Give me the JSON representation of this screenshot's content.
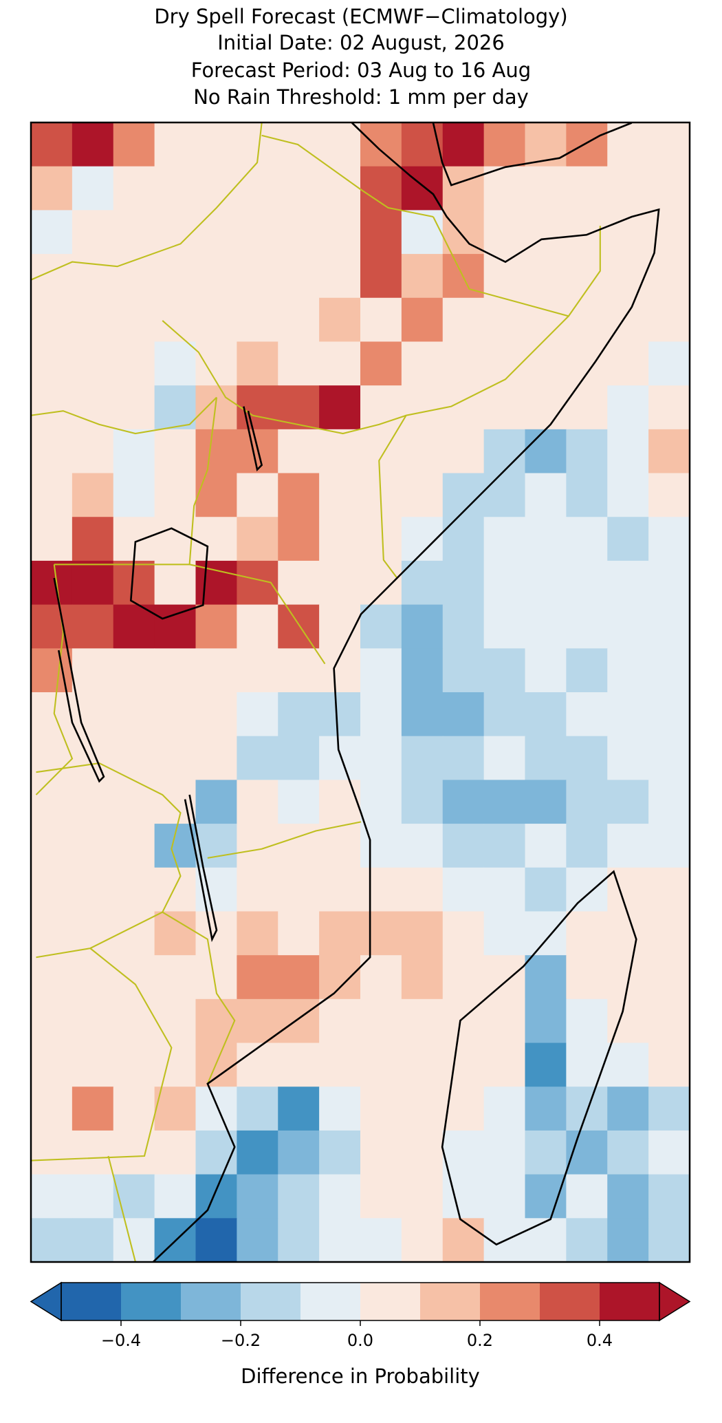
{
  "chart_data": {
    "type": "heatmap",
    "title": "Dry Spell Forecast (ECMWF−Climatology)",
    "subtitles": [
      "Initial Date: 02 August, 2026",
      "Forecast Period: 03 Aug to 16 Aug",
      "No Rain Threshold: 1 mm per day"
    ],
    "colorbar_label": "Difference in Probability",
    "clim": [
      -0.5,
      0.5
    ],
    "levels": [
      -0.5,
      -0.4,
      -0.3,
      -0.2,
      -0.1,
      0,
      0.1,
      0.2,
      0.3,
      0.4,
      0.5
    ],
    "colors": [
      "#2166ac",
      "#4393c3",
      "#7eb6d9",
      "#b8d7e9",
      "#e5eef4",
      "#fae8de",
      "#f6c1a7",
      "#e8896c",
      "#cf5246",
      "#ad1529"
    ],
    "extend": "both",
    "cticks": [
      {
        "value": -0.4,
        "label": "−0.4"
      },
      {
        "value": -0.2,
        "label": "−0.2"
      },
      {
        "value": 0,
        "label": "0.0"
      },
      0.2,
      0.4
    ],
    "grid_values": [
      [
        0.35,
        0.45,
        0.25,
        0.05,
        0.05,
        0.05,
        0.05,
        0.05,
        0.25,
        0.35,
        0.45,
        0.25,
        0.15,
        0.25,
        0.05,
        0.05
      ],
      [
        0.15,
        -0.05,
        0.05,
        0.05,
        0.05,
        0.05,
        0.05,
        0.05,
        0.35,
        0.45,
        0.15,
        0.05,
        0.05,
        0.05,
        0.05,
        0.05
      ],
      [
        -0.05,
        0.05,
        0.05,
        0.05,
        0.05,
        0.05,
        0.05,
        0.05,
        0.35,
        -0.05,
        0.15,
        0.05,
        0.05,
        0.05,
        0.05,
        0.05
      ],
      [
        0.05,
        0.05,
        0.05,
        0.05,
        0.05,
        0.05,
        0.05,
        0.05,
        0.35,
        0.15,
        0.25,
        0.05,
        0.05,
        0.05,
        0.05,
        0.05
      ],
      [
        0.05,
        0.05,
        0.05,
        0.05,
        0.05,
        0.05,
        0.05,
        0.15,
        0.05,
        0.25,
        0.05,
        0.05,
        0.05,
        0.05,
        0.05,
        0.05
      ],
      [
        0.05,
        0.05,
        0.05,
        -0.05,
        0.05,
        0.15,
        0.05,
        0.05,
        0.25,
        0.05,
        0.05,
        0.05,
        0.05,
        0.05,
        0.05,
        -0.05
      ],
      [
        0.05,
        0.05,
        0.05,
        -0.15,
        0.15,
        0.35,
        0.35,
        0.45,
        0.05,
        0.05,
        0.05,
        0.05,
        0.05,
        0.05,
        -0.05,
        0.05
      ],
      [
        0.05,
        0.05,
        -0.05,
        0.05,
        0.25,
        0.25,
        0.05,
        0.05,
        0.05,
        0.05,
        0.05,
        -0.15,
        -0.25,
        -0.15,
        -0.05,
        0.15
      ],
      [
        0.05,
        0.15,
        -0.05,
        0.05,
        0.25,
        0.05,
        0.25,
        0.05,
        0.05,
        0.05,
        -0.15,
        -0.15,
        -0.05,
        -0.15,
        -0.05,
        0.05
      ],
      [
        0.05,
        0.35,
        0.05,
        0.05,
        0.05,
        0.15,
        0.25,
        0.05,
        0.05,
        -0.05,
        -0.15,
        -0.05,
        -0.05,
        -0.05,
        -0.15,
        -0.05
      ],
      [
        0.45,
        0.45,
        0.35,
        0.05,
        0.45,
        0.35,
        0.05,
        0.05,
        0.05,
        -0.15,
        -0.15,
        -0.05,
        -0.05,
        -0.05,
        -0.05,
        -0.05
      ],
      [
        0.35,
        0.35,
        0.45,
        0.45,
        0.25,
        0.05,
        0.35,
        0.05,
        -0.15,
        -0.25,
        -0.15,
        -0.05,
        -0.05,
        -0.05,
        -0.05,
        -0.05
      ],
      [
        0.25,
        0.05,
        0.05,
        0.05,
        0.05,
        0.05,
        0.05,
        0.05,
        -0.05,
        -0.25,
        -0.15,
        -0.15,
        -0.05,
        -0.15,
        -0.05,
        -0.05
      ],
      [
        0.05,
        0.05,
        0.05,
        0.05,
        0.05,
        -0.05,
        -0.15,
        -0.15,
        -0.05,
        -0.25,
        -0.25,
        -0.15,
        -0.15,
        -0.05,
        -0.05,
        -0.05
      ],
      [
        0.05,
        0.05,
        0.05,
        0.05,
        0.05,
        -0.15,
        -0.15,
        -0.05,
        -0.05,
        -0.15,
        -0.15,
        -0.05,
        -0.15,
        -0.15,
        -0.05,
        -0.05
      ],
      [
        0.05,
        0.05,
        0.05,
        0.05,
        -0.25,
        0.05,
        -0.05,
        0.05,
        -0.05,
        -0.15,
        -0.25,
        -0.25,
        -0.25,
        -0.15,
        -0.15,
        -0.05
      ],
      [
        0.05,
        0.05,
        0.05,
        -0.25,
        -0.15,
        0.05,
        0.05,
        0.05,
        -0.05,
        -0.05,
        -0.15,
        -0.15,
        -0.05,
        -0.15,
        -0.05,
        -0.05
      ],
      [
        0.05,
        0.05,
        0.05,
        0.05,
        -0.05,
        0.05,
        0.05,
        0.05,
        0.05,
        0.05,
        -0.05,
        -0.05,
        -0.15,
        -0.05,
        0.05,
        0.05
      ],
      [
        0.05,
        0.05,
        0.05,
        0.15,
        0.05,
        0.15,
        0.05,
        0.15,
        0.15,
        0.15,
        0.05,
        -0.05,
        -0.05,
        0.05,
        0.05,
        0.05
      ],
      [
        0.05,
        0.05,
        0.05,
        0.05,
        0.05,
        0.25,
        0.25,
        0.15,
        0.05,
        0.15,
        0.05,
        0.05,
        -0.25,
        0.05,
        0.05,
        0.05
      ],
      [
        0.05,
        0.05,
        0.05,
        0.05,
        0.15,
        0.15,
        0.15,
        0.05,
        0.05,
        0.05,
        0.05,
        0.05,
        -0.25,
        -0.05,
        0.05,
        0.05
      ],
      [
        0.05,
        0.05,
        0.05,
        0.05,
        0.15,
        0.05,
        0.05,
        0.05,
        0.05,
        0.05,
        0.05,
        0.05,
        -0.35,
        -0.05,
        -0.05,
        0.05
      ],
      [
        0.05,
        0.25,
        0.05,
        0.15,
        -0.05,
        -0.15,
        -0.35,
        -0.05,
        0.05,
        0.05,
        0.05,
        -0.05,
        -0.25,
        -0.15,
        -0.25,
        -0.15
      ],
      [
        0.05,
        0.05,
        0.05,
        0.05,
        -0.15,
        -0.35,
        -0.25,
        -0.15,
        0.05,
        0.05,
        -0.05,
        -0.05,
        -0.15,
        -0.25,
        -0.15,
        -0.05
      ],
      [
        -0.05,
        -0.05,
        -0.15,
        -0.05,
        -0.35,
        -0.25,
        -0.15,
        -0.05,
        0.05,
        0.05,
        -0.05,
        -0.05,
        -0.25,
        -0.05,
        -0.25,
        -0.15
      ],
      [
        -0.15,
        -0.15,
        -0.05,
        -0.35,
        -0.45,
        -0.25,
        -0.15,
        -0.05,
        -0.05,
        0.05,
        0.15,
        -0.05,
        -0.05,
        -0.15,
        -0.25,
        -0.15
      ]
    ]
  }
}
